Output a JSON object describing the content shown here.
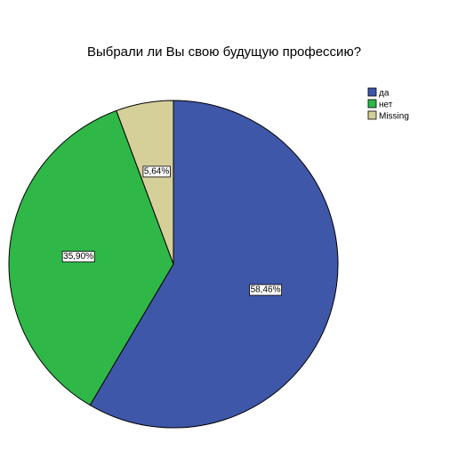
{
  "chart_data": {
    "type": "pie",
    "title": "Выбрали ли Вы свою будущую профессию?",
    "slices": [
      {
        "label": "да",
        "value": 58.46,
        "label_text": "58,46%",
        "color": "#3f57a8"
      },
      {
        "label": "нет",
        "value": 35.9,
        "label_text": "35,90%",
        "color": "#2fb748"
      },
      {
        "label": "Missing",
        "value": 5.64,
        "label_text": "5,64%",
        "color": "#d5cf9a"
      }
    ],
    "start_angle_deg": 0,
    "direction": "clockwise",
    "legend_placement": "top-right"
  }
}
